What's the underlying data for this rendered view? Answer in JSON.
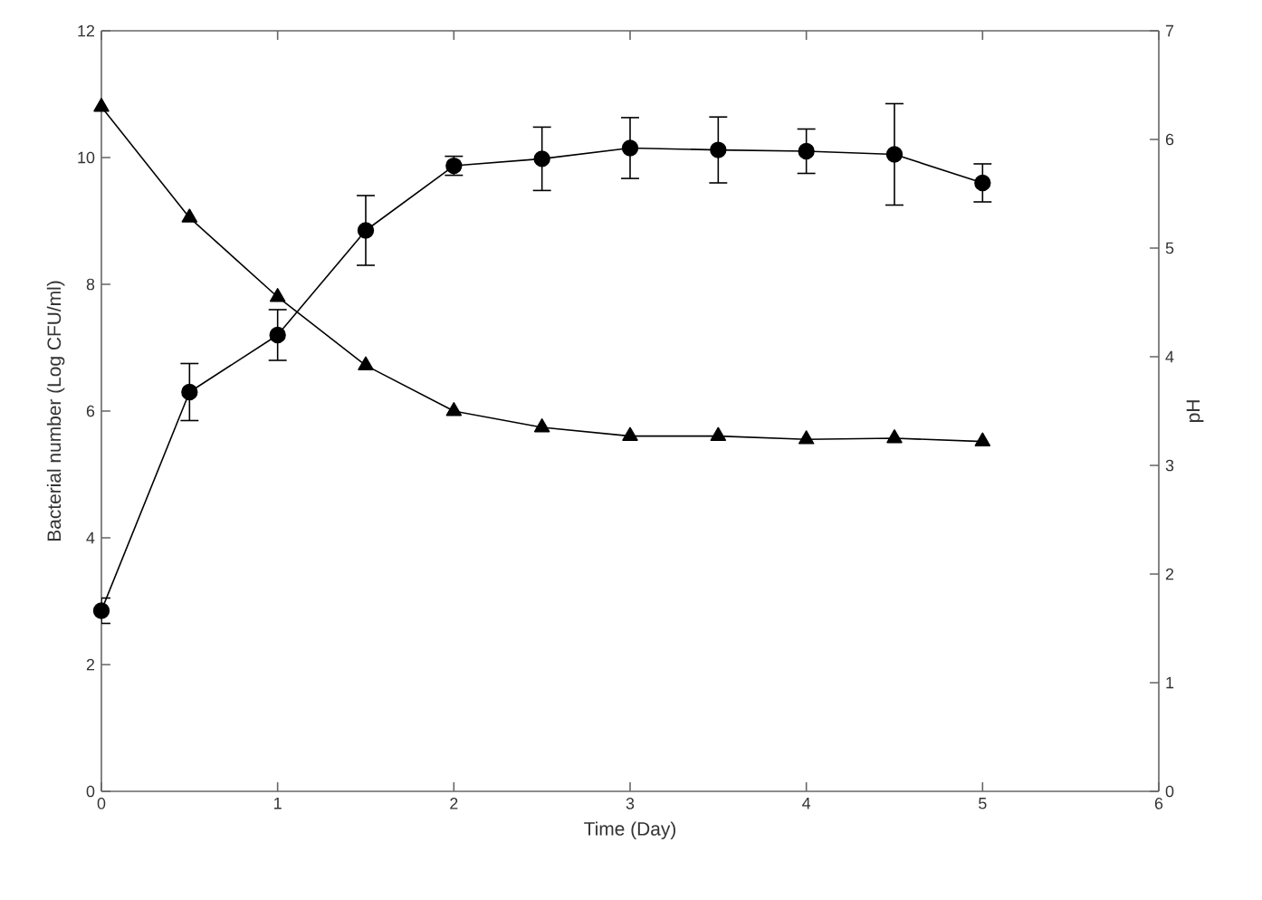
{
  "chart_data": {
    "type": "line",
    "xlabel": "Time (Day)",
    "ylabel": "Bacterial number (Log CFU/ml)",
    "y2label": "pH",
    "x": [
      0,
      0.5,
      1,
      1.5,
      2,
      2.5,
      3,
      3.5,
      4,
      4.5,
      5
    ],
    "xlim": [
      0,
      6
    ],
    "xticks": [
      0,
      1,
      2,
      3,
      4,
      5,
      6
    ],
    "ylim": [
      0,
      12
    ],
    "yticks": [
      0,
      2,
      4,
      6,
      8,
      10,
      12
    ],
    "y2lim": [
      0,
      7
    ],
    "y2ticks": [
      0,
      1,
      2,
      3,
      4,
      5,
      6,
      7
    ],
    "grid": false,
    "line_style": "solid",
    "series": [
      {
        "color": "#000000",
        "marker": "circle",
        "values": [
          2.85,
          6.3,
          7.2,
          8.85,
          9.87,
          9.98,
          10.15,
          10.12,
          10.1,
          10.05,
          9.6
        ],
        "errors": [
          0.2,
          0.45,
          0.4,
          0.55,
          0.15,
          0.5,
          0.48,
          0.52,
          0.35,
          0.8,
          0.3
        ]
      },
      {
        "color": "#000000",
        "marker": "triangle",
        "axis": "y2",
        "values": [
          6.3,
          5.28,
          4.55,
          3.92,
          3.5,
          3.35,
          3.27,
          3.27,
          3.24,
          3.25,
          3.22
        ]
      }
    ]
  }
}
